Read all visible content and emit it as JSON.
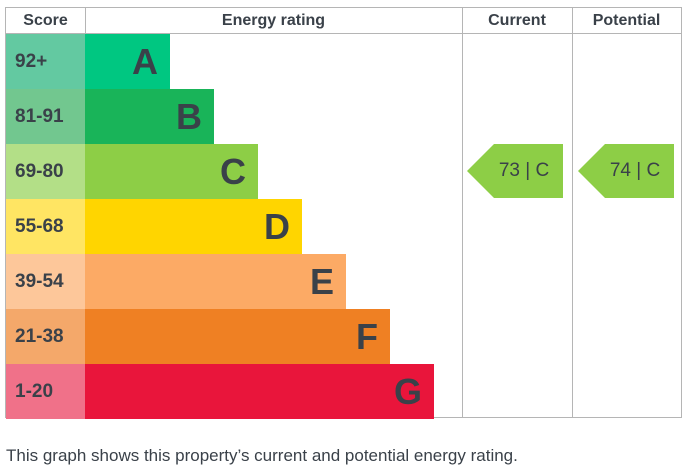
{
  "chart_data": {
    "type": "bar",
    "headers": {
      "score": "Score",
      "rating": "Energy rating",
      "current": "Current",
      "potential": "Potential"
    },
    "bands": [
      {
        "letter": "A",
        "range": "92+",
        "color": "#00c781",
        "score_color": "#63c9a1"
      },
      {
        "letter": "B",
        "range": "81-91",
        "color": "#19b459",
        "score_color": "#72c78f"
      },
      {
        "letter": "C",
        "range": "69-80",
        "color": "#8dce46",
        "score_color": "#b3df87"
      },
      {
        "letter": "D",
        "range": "55-68",
        "color": "#ffd500",
        "score_color": "#ffe563"
      },
      {
        "letter": "E",
        "range": "39-54",
        "color": "#fcaa65",
        "score_color": "#fdc79a"
      },
      {
        "letter": "F",
        "range": "21-38",
        "color": "#ef8023",
        "score_color": "#f4a86a"
      },
      {
        "letter": "G",
        "range": "1-20",
        "color": "#e9153b",
        "score_color": "#f07189"
      }
    ],
    "current": {
      "value": 73,
      "band": "C",
      "label": "73 | C",
      "color": "#8dce46"
    },
    "potential": {
      "value": 74,
      "band": "C",
      "label": "74 | C",
      "color": "#8dce46"
    }
  },
  "caption": "This graph shows this property’s current and potential energy rating."
}
